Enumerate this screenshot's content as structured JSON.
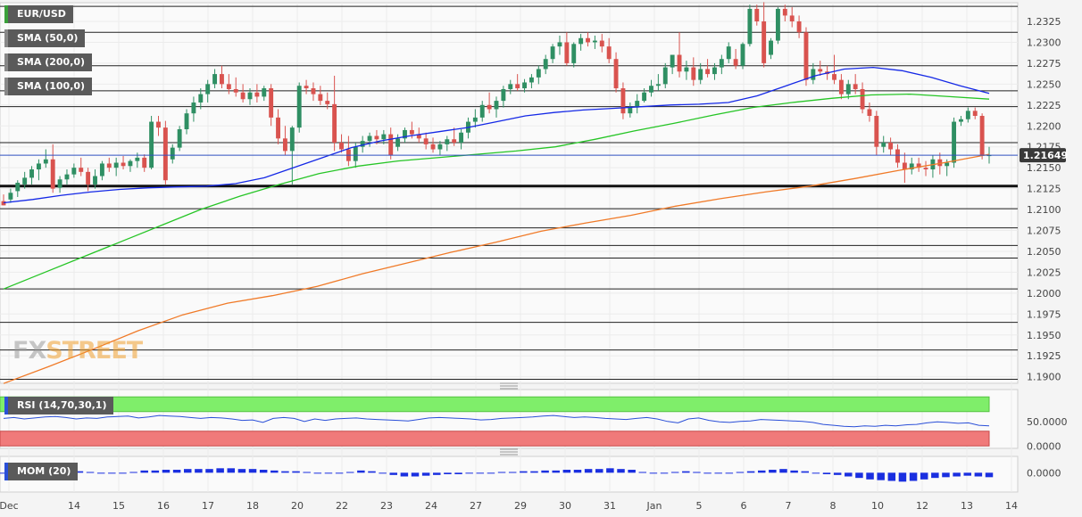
{
  "symbol": "EUR/USD",
  "legends": [
    {
      "label": "SMA (50,0)",
      "color": "#1428e6"
    },
    {
      "label": "SMA (200,0)",
      "color": "#f07a28"
    },
    {
      "label": "SMA (100,0)",
      "color": "#26c526"
    }
  ],
  "logo": {
    "part1": "FX",
    "part2": "STREET"
  },
  "current_price": "1.21649",
  "chart_data": [
    {
      "type": "candlestick",
      "title": "EUR/USD",
      "price_axis_ticks": [
        "1.2325",
        "1.2300",
        "1.2275",
        "1.2250",
        "1.2225",
        "1.2200",
        "1.2175",
        "1.2150",
        "1.2125",
        "1.2100",
        "1.2075",
        "1.2050",
        "1.2025",
        "1.2000",
        "1.1975",
        "1.1950",
        "1.1925",
        "1.1900"
      ],
      "ylim": [
        1.189,
        1.2345
      ],
      "x_ticks": [
        "Dec",
        "14",
        "15",
        "16",
        "17",
        "18",
        "20",
        "22",
        "23",
        "24",
        "27",
        "29",
        "30",
        "31",
        "Jan",
        "5",
        "6",
        "7",
        "8",
        "10",
        "12",
        "13",
        "14"
      ],
      "horizontal_levels": [
        1.2343,
        1.2312,
        1.2272,
        1.2242,
        1.2223,
        1.218,
        1.2128,
        1.2101,
        1.2078,
        1.2057,
        1.2042,
        1.2005,
        1.1965,
        1.1932,
        1.1897
      ],
      "key_level": 1.2128,
      "candles": [
        [
          1.211,
          1.2118,
          1.2105,
          1.2105
        ],
        [
          1.2112,
          1.2125,
          1.2108,
          1.212
        ],
        [
          1.2122,
          1.2135,
          1.2115,
          1.2132
        ],
        [
          1.213,
          1.2145,
          1.2125,
          1.2138
        ],
        [
          1.2138,
          1.2152,
          1.213,
          1.2148
        ],
        [
          1.2148,
          1.216,
          1.2135,
          1.2155
        ],
        [
          1.2155,
          1.2172,
          1.215,
          1.216
        ],
        [
          1.216,
          1.2178,
          1.212,
          1.2125
        ],
        [
          1.2126,
          1.214,
          1.212,
          1.2136
        ],
        [
          1.2136,
          1.2148,
          1.213,
          1.2142
        ],
        [
          1.2142,
          1.2155,
          1.2138,
          1.215
        ],
        [
          1.215,
          1.2162,
          1.214,
          1.2145
        ],
        [
          1.2145,
          1.215,
          1.2122,
          1.213
        ],
        [
          1.213,
          1.2148,
          1.2125,
          1.214
        ],
        [
          1.214,
          1.2158,
          1.2135,
          1.2155
        ],
        [
          1.2155,
          1.2162,
          1.2145,
          1.215
        ],
        [
          1.215,
          1.2162,
          1.214,
          1.2156
        ],
        [
          1.2156,
          1.2164,
          1.2148,
          1.2152
        ],
        [
          1.2152,
          1.216,
          1.2145,
          1.2158
        ],
        [
          1.2158,
          1.2168,
          1.215,
          1.2162
        ],
        [
          1.2162,
          1.2166,
          1.2145,
          1.215
        ],
        [
          1.215,
          1.2212,
          1.2148,
          1.2205
        ],
        [
          1.2205,
          1.2212,
          1.2188,
          1.2198
        ],
        [
          1.2198,
          1.2206,
          1.213,
          1.2135
        ],
        [
          1.216,
          1.2178,
          1.2155,
          1.2174
        ],
        [
          1.2174,
          1.22,
          1.217,
          1.2196
        ],
        [
          1.2196,
          1.222,
          1.219,
          1.2215
        ],
        [
          1.2215,
          1.2235,
          1.2205,
          1.2228
        ],
        [
          1.2228,
          1.2245,
          1.222,
          1.2238
        ],
        [
          1.2238,
          1.2255,
          1.2228,
          1.225
        ],
        [
          1.225,
          1.2268,
          1.2245,
          1.2262
        ],
        [
          1.2262,
          1.2272,
          1.2245,
          1.225
        ],
        [
          1.225,
          1.2262,
          1.2238,
          1.2244
        ],
        [
          1.2244,
          1.2258,
          1.2235,
          1.224
        ],
        [
          1.224,
          1.225,
          1.2228,
          1.2232
        ],
        [
          1.2232,
          1.2245,
          1.2225,
          1.224
        ],
        [
          1.224,
          1.225,
          1.2228,
          1.2235
        ],
        [
          1.2235,
          1.2248,
          1.223,
          1.2245
        ],
        [
          1.2245,
          1.225,
          1.22,
          1.221
        ],
        [
          1.221,
          1.222,
          1.2178,
          1.2185
        ],
        [
          1.2185,
          1.22,
          1.2165,
          1.217
        ],
        [
          1.217,
          1.22,
          1.213,
          1.2198
        ],
        [
          1.2198,
          1.2252,
          1.2192,
          1.2248
        ],
        [
          1.2248,
          1.2255,
          1.2238,
          1.2245
        ],
        [
          1.2245,
          1.2252,
          1.223,
          1.2238
        ],
        [
          1.2238,
          1.2248,
          1.2225,
          1.223
        ],
        [
          1.223,
          1.224,
          1.222,
          1.2226
        ],
        [
          1.2226,
          1.226,
          1.217,
          1.218
        ],
        [
          1.218,
          1.219,
          1.2168,
          1.2172
        ],
        [
          1.2172,
          1.2188,
          1.2152,
          1.2158
        ],
        [
          1.2158,
          1.218,
          1.215,
          1.2175
        ],
        [
          1.2175,
          1.2188,
          1.2168,
          1.2182
        ],
        [
          1.2182,
          1.2192,
          1.2175,
          1.2188
        ],
        [
          1.2188,
          1.2195,
          1.2178,
          1.2184
        ],
        [
          1.2184,
          1.2195,
          1.2178,
          1.219
        ],
        [
          1.219,
          1.2198,
          1.216,
          1.2165
        ],
        [
          1.2175,
          1.219,
          1.217,
          1.2185
        ],
        [
          1.2185,
          1.2198,
          1.218,
          1.2195
        ],
        [
          1.2195,
          1.2205,
          1.2185,
          1.219
        ],
        [
          1.219,
          1.2198,
          1.218,
          1.2185
        ],
        [
          1.2185,
          1.2192,
          1.2172,
          1.2178
        ],
        [
          1.2178,
          1.2186,
          1.2168,
          1.2172
        ],
        [
          1.2172,
          1.2182,
          1.2165,
          1.2178
        ],
        [
          1.2178,
          1.2188,
          1.217,
          1.2184
        ],
        [
          1.2184,
          1.2198,
          1.2176,
          1.218
        ],
        [
          1.218,
          1.2196,
          1.2172,
          1.2192
        ],
        [
          1.2192,
          1.221,
          1.2185,
          1.2205
        ],
        [
          1.2205,
          1.222,
          1.2198,
          1.221
        ],
        [
          1.221,
          1.223,
          1.2205,
          1.2225
        ],
        [
          1.2225,
          1.224,
          1.2215,
          1.222
        ],
        [
          1.222,
          1.2235,
          1.221,
          1.223
        ],
        [
          1.223,
          1.2248,
          1.2222,
          1.2244
        ],
        [
          1.2244,
          1.2255,
          1.2238,
          1.225
        ],
        [
          1.225,
          1.2262,
          1.2242,
          1.2245
        ],
        [
          1.2245,
          1.2256,
          1.224,
          1.2252
        ],
        [
          1.2252,
          1.2262,
          1.2245,
          1.2258
        ],
        [
          1.2258,
          1.2272,
          1.225,
          1.2268
        ],
        [
          1.2268,
          1.2285,
          1.2262,
          1.228
        ],
        [
          1.228,
          1.2298,
          1.2275,
          1.2295
        ],
        [
          1.2295,
          1.2308,
          1.2285,
          1.23
        ],
        [
          1.23,
          1.2312,
          1.2272,
          1.2275
        ],
        [
          1.2275,
          1.23,
          1.227,
          1.2298
        ],
        [
          1.2298,
          1.231,
          1.229,
          1.2305
        ],
        [
          1.2305,
          1.2312,
          1.2295,
          1.23
        ],
        [
          1.23,
          1.2308,
          1.2292,
          1.2302
        ],
        [
          1.2302,
          1.231,
          1.2288,
          1.2295
        ],
        [
          1.2295,
          1.2305,
          1.2275,
          1.228
        ],
        [
          1.228,
          1.2288,
          1.224,
          1.2245
        ],
        [
          1.2245,
          1.2252,
          1.2208,
          1.2215
        ],
        [
          1.2215,
          1.2228,
          1.221,
          1.2222
        ],
        [
          1.2222,
          1.2238,
          1.2215,
          1.223
        ],
        [
          1.223,
          1.2245,
          1.2228,
          1.224
        ],
        [
          1.224,
          1.2255,
          1.2235,
          1.2248
        ],
        [
          1.2248,
          1.2262,
          1.2242,
          1.225
        ],
        [
          1.225,
          1.2275,
          1.2245,
          1.227
        ],
        [
          1.227,
          1.2282,
          1.2262,
          1.2285
        ],
        [
          1.2285,
          1.2312,
          1.2258,
          1.2265
        ],
        [
          1.2265,
          1.2278,
          1.2255,
          1.227
        ],
        [
          1.227,
          1.2282,
          1.2248,
          1.2255
        ],
        [
          1.2255,
          1.2275,
          1.225,
          1.2268
        ],
        [
          1.2268,
          1.228,
          1.2258,
          1.2262
        ],
        [
          1.2262,
          1.2275,
          1.2255,
          1.227
        ],
        [
          1.227,
          1.2285,
          1.2262,
          1.228
        ],
        [
          1.228,
          1.23,
          1.2275,
          1.2295
        ],
        [
          1.228,
          1.2292,
          1.2268,
          1.2272
        ],
        [
          1.2272,
          1.23,
          1.2268,
          1.2298
        ],
        [
          1.2298,
          1.2345,
          1.2295,
          1.234
        ],
        [
          1.234,
          1.2345,
          1.232,
          1.2325
        ],
        [
          1.2325,
          1.2348,
          1.227,
          1.2275
        ],
        [
          1.2285,
          1.2305,
          1.228,
          1.2302
        ],
        [
          1.2302,
          1.2342,
          1.2298,
          1.234
        ],
        [
          1.234,
          1.2345,
          1.2325,
          1.2332
        ],
        [
          1.2332,
          1.2342,
          1.2318,
          1.2325
        ],
        [
          1.2325,
          1.2332,
          1.2305,
          1.2312
        ],
        [
          1.2312,
          1.2318,
          1.2248,
          1.2255
        ],
        [
          1.2255,
          1.2275,
          1.225,
          1.2268
        ],
        [
          1.2268,
          1.2278,
          1.226,
          1.2265
        ],
        [
          1.2265,
          1.2272,
          1.2255,
          1.2262
        ],
        [
          1.2262,
          1.2285,
          1.225,
          1.2255
        ],
        [
          1.2255,
          1.2262,
          1.2232,
          1.2238
        ],
        [
          1.2238,
          1.2255,
          1.2232,
          1.225
        ],
        [
          1.225,
          1.2262,
          1.2238,
          1.2244
        ],
        [
          1.2244,
          1.2252,
          1.2215,
          1.222
        ],
        [
          1.222,
          1.2228,
          1.2205,
          1.2212
        ],
        [
          1.2212,
          1.2218,
          1.2165,
          1.2175
        ],
        [
          1.2175,
          1.2188,
          1.2168,
          1.218
        ],
        [
          1.218,
          1.2186,
          1.2165,
          1.2172
        ],
        [
          1.2172,
          1.2178,
          1.215,
          1.2156
        ],
        [
          1.2156,
          1.2168,
          1.2132,
          1.2148
        ],
        [
          1.2148,
          1.2162,
          1.2142,
          1.2155
        ],
        [
          1.2155,
          1.2162,
          1.2145,
          1.215
        ],
        [
          1.215,
          1.2158,
          1.214,
          1.2148
        ],
        [
          1.2148,
          1.2165,
          1.2138,
          1.216
        ],
        [
          1.216,
          1.2168,
          1.2142,
          1.2152
        ],
        [
          1.2152,
          1.216,
          1.214,
          1.2156
        ],
        [
          1.2156,
          1.221,
          1.215,
          1.2205
        ],
        [
          1.2205,
          1.2212,
          1.22,
          1.2208
        ],
        [
          1.2208,
          1.2222,
          1.2204,
          1.2218
        ],
        [
          1.2218,
          1.2222,
          1.2208,
          1.2212
        ],
        [
          1.2212,
          1.2215,
          1.216,
          1.2165
        ],
        [
          1.2165,
          1.2175,
          1.2155,
          1.2165
        ]
      ],
      "series": [
        {
          "name": "SMA (50,0)",
          "values": [
            1.2108,
            1.2112,
            1.2117,
            1.2121,
            1.2124,
            1.2126,
            1.2127,
            1.2128,
            1.2131,
            1.2138,
            1.215,
            1.2162,
            1.2174,
            1.2182,
            1.2188,
            1.2193,
            1.2198,
            1.2205,
            1.2212,
            1.2216,
            1.2219,
            1.2221,
            1.2223,
            1.2225,
            1.2226,
            1.2228,
            1.2236,
            1.2248,
            1.226,
            1.2268,
            1.227,
            1.2266,
            1.2258,
            1.2248,
            1.2239
          ]
        },
        {
          "name": "SMA (200,0)",
          "values": [
            1.1892,
            1.1912,
            1.1933,
            1.1955,
            1.1974,
            1.1988,
            1.1997,
            1.2008,
            1.2023,
            1.2036,
            1.2049,
            1.2061,
            1.2074,
            1.2084,
            1.2093,
            1.2104,
            1.2113,
            1.2121,
            1.2128,
            1.2137,
            1.2147,
            1.2156,
            1.2166
          ]
        },
        {
          "name": "SMA (100,0)",
          "values": [
            1.2005,
            1.2024,
            1.2043,
            1.2062,
            1.2081,
            1.21,
            1.2116,
            1.213,
            1.2143,
            1.2152,
            1.2158,
            1.2162,
            1.2166,
            1.217,
            1.2175,
            1.2184,
            1.2194,
            1.2203,
            1.2213,
            1.2222,
            1.2228,
            1.2233,
            1.2237,
            1.2238,
            1.2235,
            1.2232
          ]
        }
      ]
    },
    {
      "type": "line",
      "title": "RSI (14,70,30,1)",
      "ticks": [
        "50.0000",
        "0.0000"
      ],
      "ylim": [
        -5,
        115
      ],
      "zones": {
        "overbought": 70,
        "oversold": 30
      },
      "values": [
        56,
        58,
        55,
        57,
        59,
        60,
        58,
        55,
        57,
        56,
        59,
        60,
        61,
        57,
        59,
        62,
        61,
        60,
        58,
        56,
        58,
        57,
        55,
        52,
        53,
        48,
        56,
        58,
        56,
        50,
        55,
        52,
        55,
        56,
        57,
        55,
        54,
        53,
        52,
        51,
        54,
        57,
        58,
        57,
        56,
        55,
        53,
        54,
        56,
        57,
        58,
        59,
        61,
        62,
        60,
        58,
        59,
        58,
        56,
        55,
        54,
        56,
        58,
        55,
        50,
        47,
        55,
        57,
        52,
        49,
        48,
        50,
        51,
        54,
        53,
        52,
        51,
        50,
        48,
        44,
        42,
        40,
        39,
        41,
        40,
        42,
        41,
        43,
        44,
        47,
        49,
        48,
        46,
        47,
        42,
        41
      ]
    },
    {
      "type": "bar",
      "title": "MOM (20)",
      "ticks": [
        "0.0000"
      ],
      "ylim": [
        -26,
        22
      ],
      "values": [
        -1,
        2,
        3,
        3,
        4,
        3,
        3,
        2,
        1,
        0,
        -1,
        0,
        1,
        3,
        3,
        4,
        4,
        5,
        5,
        5,
        6,
        6,
        5,
        5,
        4,
        3,
        2,
        2,
        1,
        0,
        -1,
        0,
        1,
        3,
        2,
        0,
        -3,
        -5,
        -5,
        -4,
        -3,
        -2,
        -2,
        -1,
        0,
        0,
        1,
        1,
        2,
        2,
        3,
        3,
        4,
        4,
        5,
        5,
        6,
        5,
        4,
        1,
        -1,
        0,
        1,
        2,
        1,
        -1,
        -1,
        0,
        1,
        2,
        3,
        4,
        5,
        3,
        2,
        -1,
        -2,
        -3,
        -5,
        -7,
        -9,
        -10,
        -11,
        -12,
        -11,
        -9,
        -7,
        -6,
        -5,
        -4,
        -5,
        -6
      ]
    }
  ]
}
